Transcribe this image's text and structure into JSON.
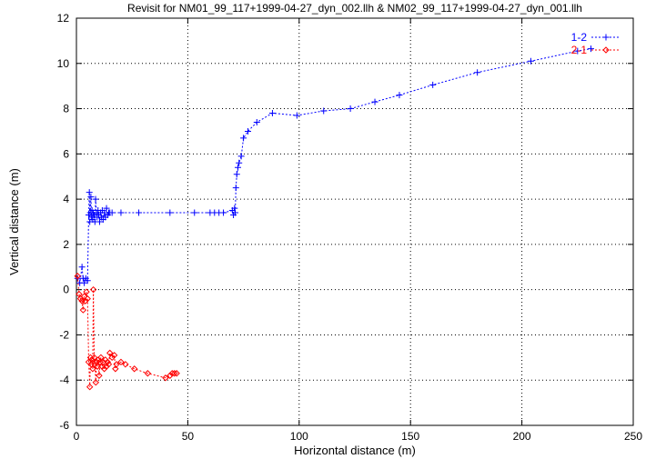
{
  "chart_data": {
    "type": "scatter",
    "title": "Revisit for NM01_99_117+1999-04-27_dyn_002.llh & NM02_99_117+1999-04-27_dyn_001.llh",
    "xlabel": "Horizontal distance (m)",
    "ylabel": "Vertical distance (m)",
    "xlim": [
      0,
      250
    ],
    "ylim": [
      -6,
      12
    ],
    "x_ticks": [
      0,
      50,
      100,
      150,
      200,
      250
    ],
    "y_ticks": [
      -6,
      -4,
      -2,
      0,
      2,
      4,
      6,
      8,
      10,
      12
    ],
    "x_tick_labels": [
      "0",
      "50",
      "100",
      "150",
      "200",
      "250"
    ],
    "y_tick_labels": [
      "-6",
      "-4",
      "-2",
      "0",
      "2",
      "4",
      "6",
      "8",
      "10",
      "12"
    ],
    "grid": true,
    "legend_position": "top-right",
    "series": [
      {
        "name": "1-2",
        "color": "#0000ff",
        "marker": "plus",
        "line": "dashed",
        "points": [
          [
            0.5,
            0.5
          ],
          [
            1.5,
            0.3
          ],
          [
            2.5,
            1.0
          ],
          [
            3,
            0.5
          ],
          [
            3.5,
            0.3
          ],
          [
            4.2,
            0.5
          ],
          [
            5,
            0.4
          ],
          [
            5.5,
            3.3
          ],
          [
            5.8,
            4.3
          ],
          [
            6.0,
            3.0
          ],
          [
            6.2,
            3.4
          ],
          [
            6.5,
            4.1
          ],
          [
            6.8,
            3.2
          ],
          [
            7.0,
            3.5
          ],
          [
            7.3,
            3.1
          ],
          [
            7.6,
            3.4
          ],
          [
            8.0,
            3.3
          ],
          [
            8.3,
            3.0
          ],
          [
            8.6,
            4.0
          ],
          [
            9.0,
            3.4
          ],
          [
            9.3,
            3.2
          ],
          [
            9.7,
            3.5
          ],
          [
            10.0,
            3.3
          ],
          [
            10.4,
            3.0
          ],
          [
            10.8,
            3.4
          ],
          [
            11.2,
            3.2
          ],
          [
            11.6,
            3.5
          ],
          [
            12.0,
            3.1
          ],
          [
            12.5,
            3.4
          ],
          [
            13.0,
            3.2
          ],
          [
            13.5,
            3.6
          ],
          [
            14.0,
            3.3
          ],
          [
            14.5,
            3.4
          ],
          [
            15.0,
            3.4
          ],
          [
            16.0,
            3.4
          ],
          [
            20.0,
            3.4
          ],
          [
            28.0,
            3.4
          ],
          [
            42.0,
            3.4
          ],
          [
            53.0,
            3.4
          ],
          [
            60.0,
            3.4
          ],
          [
            62.0,
            3.4
          ],
          [
            64.0,
            3.4
          ],
          [
            66.0,
            3.4
          ],
          [
            70.0,
            3.5
          ],
          [
            70.5,
            3.3
          ],
          [
            71.0,
            3.6
          ],
          [
            71.3,
            3.4
          ],
          [
            71.6,
            4.5
          ],
          [
            72.0,
            5.1
          ],
          [
            72.5,
            5.4
          ],
          [
            73.0,
            5.6
          ],
          [
            74.0,
            5.9
          ],
          [
            75.0,
            6.7
          ],
          [
            77.0,
            7.0
          ],
          [
            81.0,
            7.4
          ],
          [
            88.0,
            7.8
          ],
          [
            99.0,
            7.7
          ],
          [
            111.0,
            7.9
          ],
          [
            123.0,
            8.0
          ],
          [
            134.0,
            8.3
          ],
          [
            145.0,
            8.6
          ],
          [
            160.0,
            9.05
          ],
          [
            180.0,
            9.6
          ],
          [
            204.0,
            10.1
          ],
          [
            225.0,
            10.55
          ],
          [
            231.0,
            10.65
          ]
        ]
      },
      {
        "name": "2-1",
        "color": "#ff0000",
        "marker": "diamond",
        "line": "dashed",
        "points": [
          [
            0.5,
            0.6
          ],
          [
            1.2,
            -0.2
          ],
          [
            1.8,
            -0.4
          ],
          [
            2.5,
            -0.5
          ],
          [
            3.0,
            -0.9
          ],
          [
            3.5,
            -0.3
          ],
          [
            4.0,
            -0.5
          ],
          [
            4.5,
            -0.1
          ],
          [
            5.0,
            -0.4
          ],
          [
            5.5,
            -3.2
          ],
          [
            6.0,
            -4.3
          ],
          [
            6.3,
            -3.0
          ],
          [
            6.6,
            -3.3
          ],
          [
            7.0,
            -3.1
          ],
          [
            7.3,
            -3.5
          ],
          [
            7.6,
            0.0
          ],
          [
            8.0,
            -3.0
          ],
          [
            8.3,
            -3.3
          ],
          [
            8.7,
            -4.1
          ],
          [
            9.0,
            -3.2
          ],
          [
            9.4,
            -3.4
          ],
          [
            9.8,
            -3.1
          ],
          [
            10.2,
            -3.8
          ],
          [
            10.6,
            -3.2
          ],
          [
            11.0,
            -3.0
          ],
          [
            11.5,
            -3.4
          ],
          [
            12.0,
            -3.2
          ],
          [
            12.5,
            -3.5
          ],
          [
            13.0,
            -3.1
          ],
          [
            13.5,
            -3.4
          ],
          [
            14.0,
            -3.2
          ],
          [
            14.5,
            -3.3
          ],
          [
            15.0,
            -2.8
          ],
          [
            16.0,
            -3.0
          ],
          [
            17.0,
            -2.9
          ],
          [
            17.5,
            -3.5
          ],
          [
            18.0,
            -3.3
          ],
          [
            20.0,
            -3.2
          ],
          [
            22.0,
            -3.3
          ],
          [
            26.0,
            -3.5
          ],
          [
            32.0,
            -3.7
          ],
          [
            40.0,
            -3.9
          ],
          [
            42.0,
            -3.8
          ],
          [
            43.0,
            -3.7
          ],
          [
            44.0,
            -3.7
          ],
          [
            45.0,
            -3.7
          ]
        ]
      }
    ]
  }
}
